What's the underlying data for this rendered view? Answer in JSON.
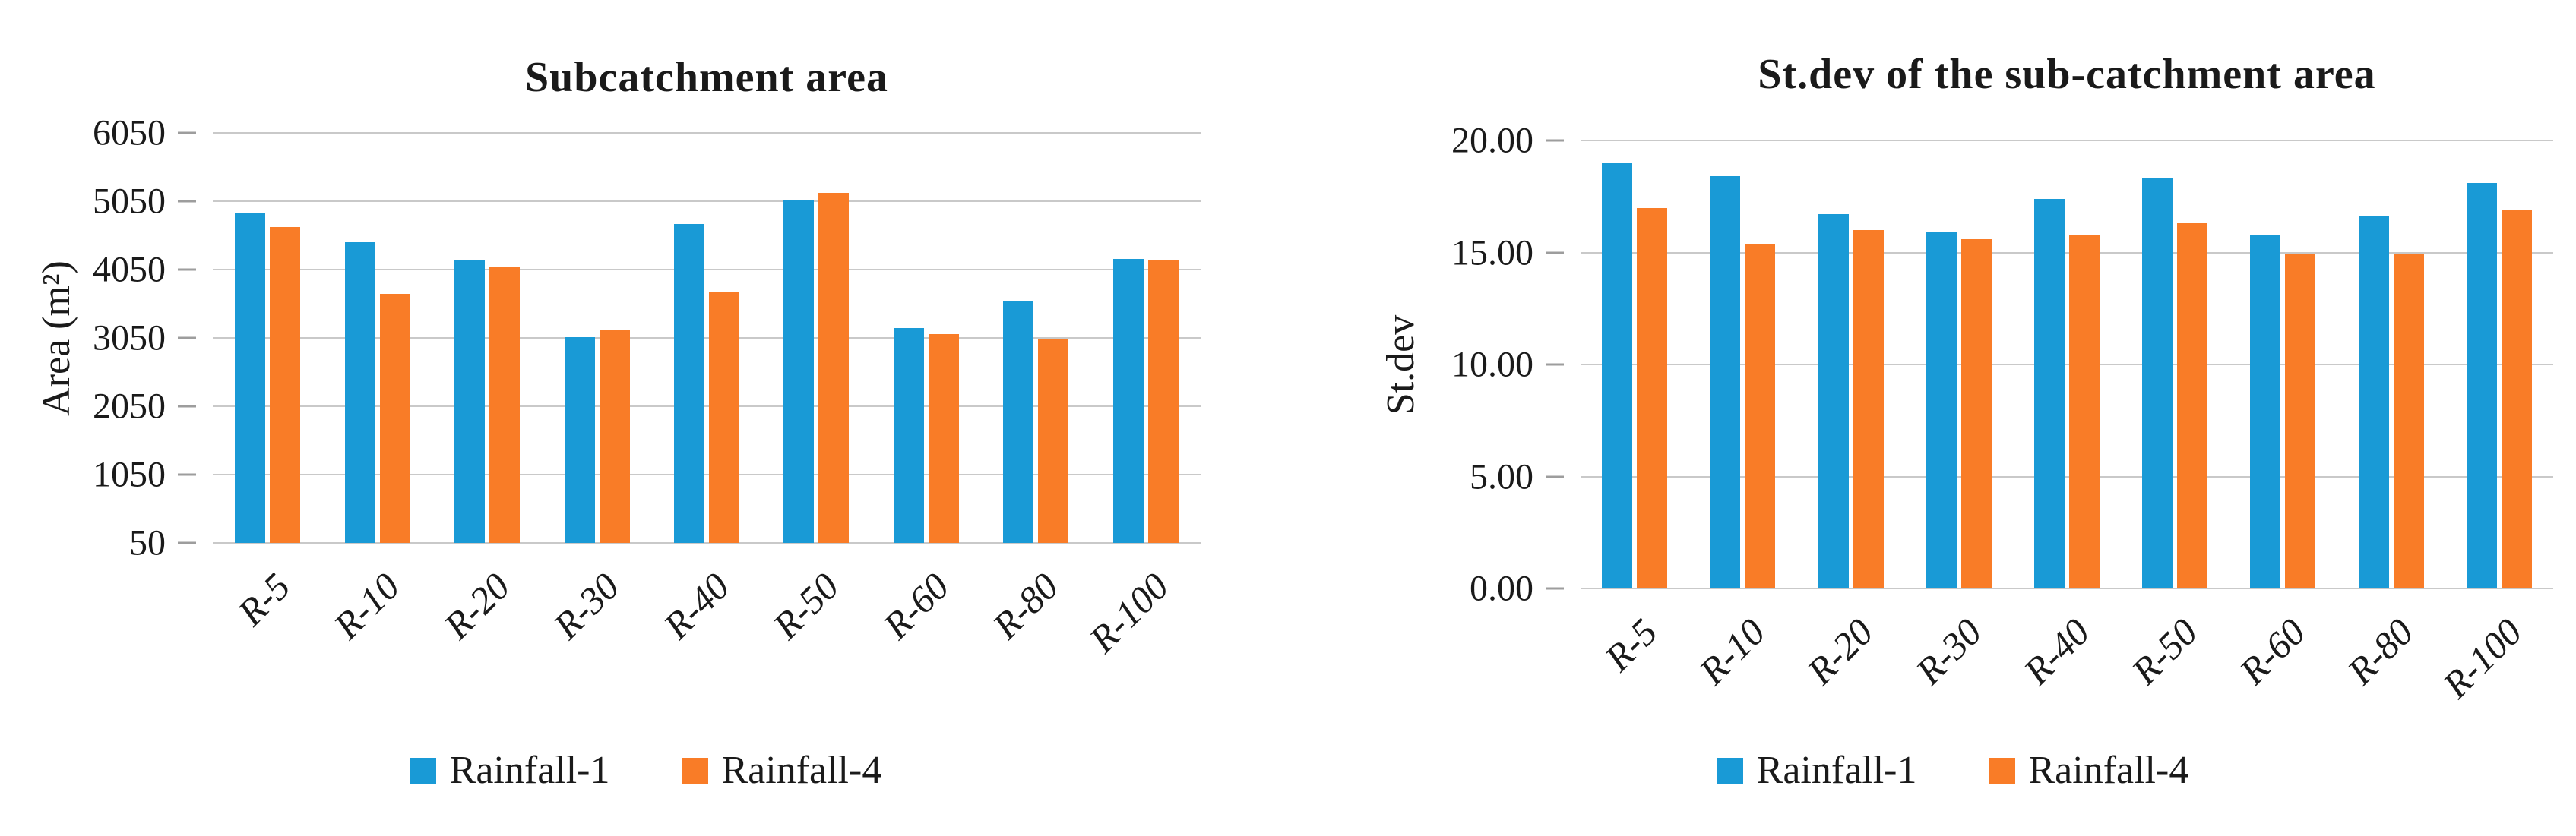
{
  "figure": {
    "background": "#ffffff",
    "text_color": "#1a1a1a",
    "gridline_color": "#c9c9c9",
    "tick_color": "#9d9d9d"
  },
  "chart_data": [
    {
      "type": "bar",
      "title": "Subcatchment area",
      "xlabel": "",
      "ylabel": "Area (m²)",
      "ylim": [
        50,
        6050
      ],
      "grid": true,
      "legend_position": "bottom",
      "yticks": [
        {
          "v": 6050,
          "label": "6050"
        },
        {
          "v": 5050,
          "label": "5050"
        },
        {
          "v": 4050,
          "label": "4050"
        },
        {
          "v": 3050,
          "label": "3050"
        },
        {
          "v": 2050,
          "label": "2050"
        },
        {
          "v": 1050,
          "label": "1050"
        },
        {
          "v": 50,
          "label": "50"
        }
      ],
      "categories": [
        "R-5",
        "R-10",
        "R-20",
        "R-30",
        "R-40",
        "R-50",
        "R-60",
        "R-80",
        "R-100"
      ],
      "series": [
        {
          "name": "Rainfall-1",
          "color": "#199AD6",
          "values": [
            4880,
            4450,
            4180,
            3060,
            4720,
            5070,
            3190,
            3590,
            4210
          ]
        },
        {
          "name": "Rainfall-4",
          "color": "#F97C27",
          "values": [
            4670,
            3700,
            4080,
            3160,
            3730,
            5170,
            3110,
            3030,
            4180
          ]
        }
      ]
    },
    {
      "type": "bar",
      "title": "St.dev of the sub-catchment area",
      "xlabel": "",
      "ylabel": "St.dev",
      "ylim": [
        0,
        20
      ],
      "grid": true,
      "legend_position": "bottom",
      "yticks": [
        {
          "v": 20,
          "label": "20.00"
        },
        {
          "v": 15,
          "label": "15.00"
        },
        {
          "v": 10,
          "label": "10.00"
        },
        {
          "v": 5,
          "label": "5.00"
        },
        {
          "v": 0,
          "label": "0.00"
        }
      ],
      "categories": [
        "R-5",
        "R-10",
        "R-20",
        "R-30",
        "R-40",
        "R-50",
        "R-60",
        "R-80",
        "R-100"
      ],
      "series": [
        {
          "name": "Rainfall-1",
          "color": "#199AD6",
          "values": [
            19.0,
            18.4,
            16.7,
            15.9,
            17.4,
            18.3,
            15.8,
            16.6,
            18.1
          ]
        },
        {
          "name": "Rainfall-4",
          "color": "#F97C27",
          "values": [
            17.0,
            15.4,
            16.0,
            15.6,
            15.8,
            16.3,
            14.9,
            14.9,
            16.9
          ]
        }
      ]
    }
  ]
}
